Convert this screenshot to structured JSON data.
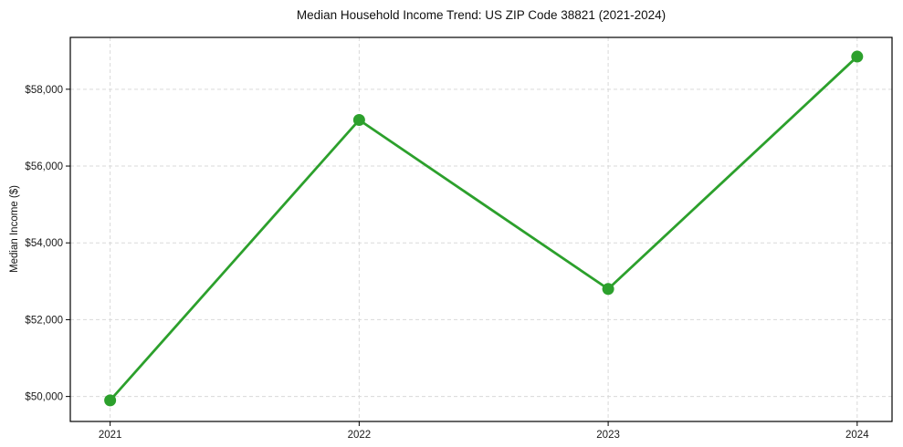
{
  "chart_data": {
    "type": "line",
    "title": "Median Household Income Trend: US ZIP Code 38821 (2021-2024)",
    "xlabel": "",
    "ylabel": "Median Income ($)",
    "x": [
      2021,
      2022,
      2023,
      2024
    ],
    "series": [
      {
        "name": "Median Household Income",
        "values": [
          49900,
          57200,
          52800,
          58850
        ]
      }
    ],
    "x_tick_labels": [
      "2021",
      "2022",
      "2023",
      "2024"
    ],
    "y_ticks": [
      50000,
      52000,
      54000,
      56000,
      58000
    ],
    "y_tick_labels": [
      "$50,000",
      "$52,000",
      "$54,000",
      "$56,000",
      "$58,000"
    ],
    "xlim": [
      2020.84,
      2024.14
    ],
    "ylim": [
      49350,
      59350
    ],
    "grid": true,
    "grid_style": "dashed",
    "legend": "none",
    "line_color": "#2ca02c",
    "marker": "circle",
    "grid_color": "#d9d9d9",
    "spine_color": "#000000",
    "text_color": "#1a1a1a",
    "background_color": "#ffffff"
  }
}
